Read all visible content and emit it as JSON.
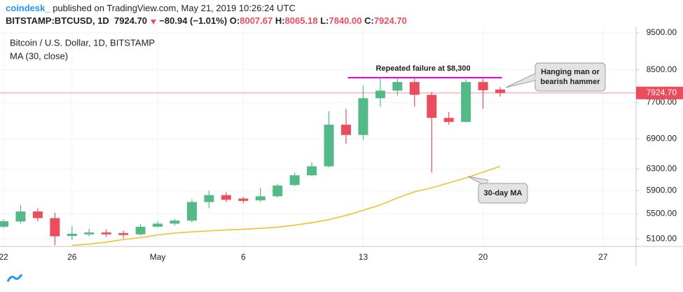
{
  "header": {
    "publisher": "coindesk_",
    "published": "published on TradingView.com, May 21, 2019 10:26:24 UTC",
    "symbol": "BITSTAMP:BTCUSD, 1D",
    "price": "7924.70",
    "change": "−80.94 (−1.01%)",
    "ohlc": [
      {
        "label": "O:",
        "value": "8007.67"
      },
      {
        "label": "H:",
        "value": "8065.18"
      },
      {
        "label": "L:",
        "value": "7840.00"
      },
      {
        "label": "C:",
        "value": "7924.70"
      }
    ]
  },
  "chart_data": {
    "type": "candlestick",
    "title": "Bitcoin / U.S. Dollar, 1D, BITSTAMP",
    "log_scale": true,
    "grid": true,
    "up_color": "#53b987",
    "down_color": "#eb4d5c",
    "categories": [
      "22",
      null,
      null,
      null,
      "26",
      null,
      null,
      null,
      null,
      "May",
      null,
      null,
      null,
      null,
      "6",
      null,
      null,
      null,
      null,
      null,
      null,
      "13",
      null,
      null,
      null,
      null,
      null,
      null,
      "20",
      null,
      null,
      null,
      null,
      null,
      null,
      "27",
      null,
      null
    ],
    "open": [
      5290,
      5375,
      5540,
      5430,
      5145,
      5170,
      5200,
      5190,
      5170,
      5290,
      5340,
      5390,
      5700,
      5820,
      5760,
      5730,
      5800,
      6000,
      6180,
      6350,
      7200,
      6980,
      7800,
      7980,
      8190,
      7880,
      7350,
      7260,
      8190,
      8007.67,
      null,
      null,
      null,
      null,
      null,
      null,
      null,
      null
    ],
    "high": [
      5410,
      5650,
      5590,
      5520,
      5300,
      5260,
      5250,
      5230,
      5330,
      5380,
      5420,
      5750,
      5900,
      5870,
      5790,
      5950,
      6020,
      6230,
      6430,
      7500,
      7550,
      8100,
      8300,
      8290,
      8300,
      7950,
      7480,
      8260,
      8270,
      8065.18,
      null,
      null,
      null,
      null,
      null,
      null,
      null,
      null
    ],
    "low": [
      5270,
      5340,
      5380,
      5000,
      5080,
      5140,
      5130,
      5110,
      5150,
      5280,
      5310,
      5360,
      5600,
      5700,
      5680,
      5700,
      5780,
      5980,
      6160,
      6330,
      6800,
      6870,
      7600,
      7860,
      7600,
      6230,
      7200,
      7250,
      7560,
      7840,
      null,
      null,
      null,
      null,
      null,
      null,
      null,
      null
    ],
    "close": [
      5380,
      5540,
      5430,
      5140,
      5180,
      5200,
      5170,
      5160,
      5290,
      5340,
      5390,
      5700,
      5820,
      5740,
      5720,
      5800,
      5990,
      6180,
      6350,
      7200,
      6980,
      7800,
      7980,
      8190,
      7880,
      7350,
      7260,
      8190,
      7990,
      7924.7,
      null,
      null,
      null,
      null,
      null,
      null,
      null,
      null
    ],
    "ma": {
      "name": "MA (30, close)",
      "color": "#f2c12e",
      "values": [
        null,
        null,
        null,
        null,
        5000,
        5020,
        5050,
        5090,
        5120,
        5160,
        5190,
        5210,
        5225,
        5240,
        5250,
        5265,
        5285,
        5315,
        5355,
        5405,
        5475,
        5560,
        5650,
        5770,
        5880,
        5950,
        6040,
        6130,
        6240,
        6350,
        null,
        null,
        null,
        null,
        null,
        null,
        null,
        null
      ]
    },
    "ylim": [
      4984,
      9683
    ],
    "yticks": [
      {
        "value": 5100,
        "label": "5100.00"
      },
      {
        "value": 5500,
        "label": "5500.00"
      },
      {
        "value": 5900,
        "label": "5900.00"
      },
      {
        "value": 6300,
        "label": "6300.00"
      },
      {
        "value": 6900,
        "label": "6900.00"
      },
      {
        "value": 7700,
        "label": "7700.00"
      },
      {
        "value": 8500,
        "label": "8500.00"
      },
      {
        "value": 9500,
        "label": "9500.00"
      }
    ],
    "price_label": {
      "value": 7924.7,
      "label": "7924.70"
    },
    "resistance": {
      "value": 8300,
      "label": "Repeated failure at $8,300",
      "color": "#d400d4"
    },
    "callouts": [
      {
        "lines": [
          "Hanging man or",
          "bearish hammer"
        ]
      },
      {
        "lines": [
          "30-day MA"
        ]
      }
    ]
  }
}
